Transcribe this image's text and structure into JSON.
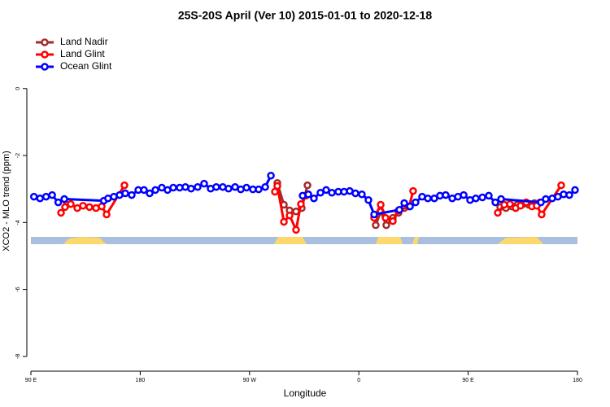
{
  "chart_data": {
    "type": "line",
    "title": "25S-20S April (Ver 10)   2015-01-01 to 2020-12-18",
    "x_label": "Longitude",
    "y_label": "XCO2 - MLO trend (ppm)",
    "xlim": [
      90,
      540
    ],
    "xticks": [
      {
        "value": 90,
        "label": "90 E"
      },
      180,
      {
        "value": 270,
        "label": "90 W"
      },
      {
        "value": 360,
        "label": "0"
      },
      {
        "value": 450,
        "label": "90 E"
      },
      {
        "value": 540,
        "label": "180"
      }
    ],
    "ylim": [
      -8.44,
      1.72
    ],
    "yticks": [
      0,
      -2,
      -4,
      -6,
      -8
    ],
    "legend": "top-left",
    "series": [
      {
        "name": "Land Nadir",
        "color": "#a52a2a",
        "x": [
          119.5,
          200,
          292.9,
          298.3,
          303,
          308.3,
          313,
          317.7,
          350,
          373.9,
          378,
          382.6,
          388,
          392.7,
          397.4,
          450,
          476.4,
          481.1,
          485.8,
          490.5,
          495.2,
          499.9,
          504.6,
          509.2
        ],
        "values": [
          -3.47,
          null,
          -2.82,
          -3.47,
          -3.64,
          -3.67,
          -3.57,
          -2.89,
          null,
          -4.08,
          -3.67,
          -4.08,
          -3.86,
          -3.71,
          -3.57,
          null,
          -3.54,
          -3.57,
          -3.52,
          -3.47,
          -3.45,
          -3.47,
          -3.42,
          -3.4
        ]
      },
      {
        "name": "Land Glint",
        "color": "#ff0000",
        "x": [
          114.8,
          118.1,
          122.8,
          128.2,
          132.9,
          138.2,
          143.6,
          148.3,
          152.3,
          167,
          230,
          290.9,
          292.9,
          298.3,
          303,
          308.3,
          312.3,
          316.3,
          350,
          372.6,
          378,
          382,
          388,
          392.7,
          401.4,
          404.7,
          450,
          474.4,
          479.7,
          484.4,
          489.1,
          493.1,
          497.8,
          502.5,
          506.5,
          510.5,
          526.6
        ],
        "values": [
          -3.71,
          -3.54,
          -3.45,
          -3.57,
          -3.5,
          -3.54,
          -3.57,
          -3.52,
          -3.76,
          -2.89,
          null,
          -3.08,
          -2.91,
          -3.98,
          -3.79,
          -4.22,
          -3.45,
          -3.2,
          null,
          -3.86,
          -3.47,
          -3.86,
          -3.96,
          -3.64,
          -3.52,
          -3.06,
          null,
          -3.71,
          -3.47,
          -3.45,
          -3.57,
          -3.5,
          -3.4,
          -3.52,
          -3.5,
          -3.76,
          -2.89
        ]
      },
      {
        "name": "Ocean Glint",
        "color": "#0000ff",
        "x": [
          92.5,
          97.5,
          102.5,
          107.5,
          112.5,
          117.5,
          150,
          153.5,
          158.3,
          163,
          167.7,
          173,
          178.4,
          183.1,
          187.8,
          192.5,
          197.8,
          202.5,
          207.2,
          212.5,
          217.2,
          221.9,
          227.3,
          232.6,
          238,
          242.6,
          248,
          252.7,
          258.1,
          262.8,
          267.5,
          272.8,
          277.5,
          282.9,
          287.6,
          300,
          313.7,
          318.4,
          323,
          328.4,
          333.1,
          337.8,
          343.1,
          347.8,
          352.5,
          357.2,
          362.5,
          367.9,
          372.6,
          393.4,
          397.4,
          402.1,
          406.7,
          412.1,
          416.8,
          422.1,
          426.8,
          431.5,
          436.9,
          441.6,
          446.3,
          451.6,
          456.3,
          461.7,
          467,
          472.4,
          477.1,
          509.9,
          513.9,
          519.2,
          523.9,
          528.6,
          533.3,
          538
        ],
        "values": [
          -3.23,
          -3.28,
          -3.23,
          -3.18,
          -3.4,
          -3.3,
          -3.35,
          -3.28,
          -3.23,
          -3.18,
          -3.13,
          -3.18,
          -3.03,
          -3.03,
          -3.13,
          -3.03,
          -2.96,
          -3.03,
          -2.96,
          -2.96,
          -2.94,
          -2.99,
          -2.94,
          -2.84,
          -2.99,
          -2.94,
          -2.94,
          -2.99,
          -2.94,
          -3.01,
          -2.96,
          -3.01,
          -3.01,
          -2.94,
          -2.6,
          null,
          -3.2,
          -3.16,
          -3.28,
          -3.11,
          -3.03,
          -3.11,
          -3.08,
          -3.08,
          -3.06,
          -3.13,
          -3.16,
          -3.33,
          -3.76,
          -3.62,
          -3.42,
          -3.52,
          -3.4,
          -3.23,
          -3.28,
          -3.28,
          -3.2,
          -3.18,
          -3.28,
          -3.23,
          -3.18,
          -3.33,
          -3.28,
          -3.25,
          -3.2,
          -3.4,
          -3.3,
          -3.4,
          -3.3,
          -3.28,
          -3.23,
          -3.16,
          -3.18,
          -3.03
        ]
      }
    ]
  }
}
